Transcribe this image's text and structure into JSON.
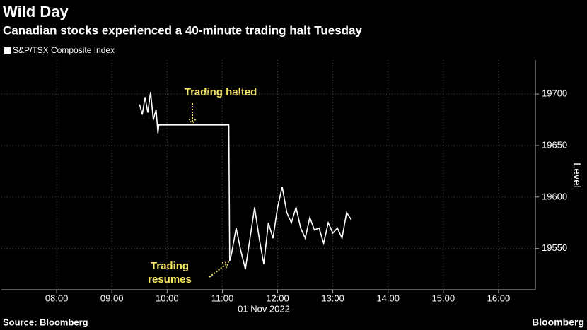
{
  "chart_data": {
    "type": "line",
    "title": "Wild Day",
    "subtitle": "Canadian stocks experienced a 40-minute trading halt Tuesday",
    "x_label": "01 Nov 2022",
    "y_label": "Level",
    "source": "Source: Bloomberg",
    "brand": "Bloomberg",
    "annotations": {
      "halted": "Trading halted",
      "resumes": [
        "Trading",
        "resumes"
      ]
    },
    "x": [
      "09:30",
      "09:33",
      "09:36",
      "09:39",
      "09:42",
      "09:45",
      "09:48",
      "09:50",
      "09:51",
      "11:07",
      "11:08",
      "11:10",
      "11:15",
      "11:20",
      "11:25",
      "11:30",
      "11:35",
      "11:40",
      "11:45",
      "11:50",
      "11:55",
      "12:00",
      "12:05",
      "12:10",
      "12:15",
      "12:20",
      "12:25",
      "12:30",
      "12:35",
      "12:40",
      "12:45",
      "12:50",
      "12:55",
      "13:00",
      "13:05",
      "13:10",
      "13:15",
      "13:20"
    ],
    "series": [
      {
        "name": "S&P/TSX Composite Index",
        "color": "#ffffff",
        "values": [
          19690,
          19680,
          19697,
          19682,
          19702,
          19675,
          19685,
          19662,
          19670,
          19670,
          19538,
          19545,
          19570,
          19548,
          19530,
          19560,
          19590,
          19560,
          19535,
          19575,
          19560,
          19590,
          19610,
          19585,
          19575,
          19590,
          19570,
          19560,
          19580,
          19568,
          19570,
          19555,
          19575,
          19565,
          19570,
          19560,
          19585,
          19578
        ]
      }
    ],
    "xlim": [
      "07:00",
      "16:40"
    ],
    "xticks": [
      "08:00",
      "09:00",
      "10:00",
      "11:00",
      "12:00",
      "13:00",
      "14:00",
      "15:00",
      "16:00"
    ],
    "ylim": [
      19510,
      19733
    ],
    "yticks": [
      19550,
      19600,
      19650,
      19700
    ],
    "grid": true
  }
}
